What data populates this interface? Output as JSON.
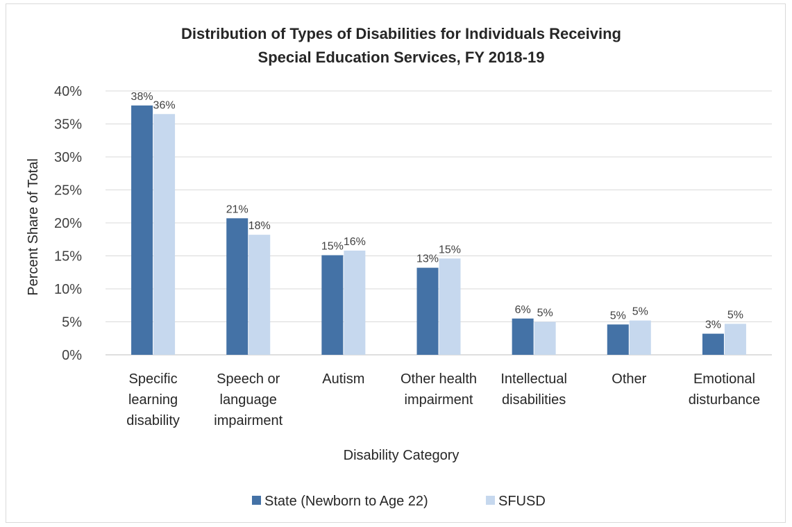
{
  "chart_data": {
    "type": "bar",
    "title_lines": [
      "Distribution of Types of Disabilities for Individuals Receiving",
      "Special Education Services, FY 2018-19"
    ],
    "xlabel": "Disability Category",
    "ylabel": "Percent Share of Total",
    "ylim": [
      0,
      40
    ],
    "yticks": [
      "0%",
      "5%",
      "10%",
      "15%",
      "20%",
      "25%",
      "30%",
      "35%",
      "40%"
    ],
    "grid": true,
    "legend_position": "bottom",
    "categories": [
      [
        "Specific",
        "learning",
        "disability"
      ],
      [
        "Speech or",
        "language",
        "impairment"
      ],
      [
        "Autism"
      ],
      [
        "Other health",
        "impairment"
      ],
      [
        "Intellectual",
        "disabilities"
      ],
      [
        "Other"
      ],
      [
        "Emotional",
        "disturbance"
      ]
    ],
    "series": [
      {
        "name": "State (Newborn to Age 22)",
        "color": "#4472a6",
        "values": [
          37.8,
          20.7,
          15.1,
          13.2,
          5.5,
          4.6,
          3.2
        ],
        "labels": [
          "38%",
          "21%",
          "15%",
          "13%",
          "6%",
          "5%",
          "3%"
        ]
      },
      {
        "name": "SFUSD",
        "color": "#c6d8ee",
        "values": [
          36.5,
          18.2,
          15.8,
          14.6,
          5.0,
          5.2,
          4.7
        ],
        "labels": [
          "36%",
          "18%",
          "16%",
          "15%",
          "5%",
          "5%",
          "5%"
        ]
      }
    ]
  }
}
